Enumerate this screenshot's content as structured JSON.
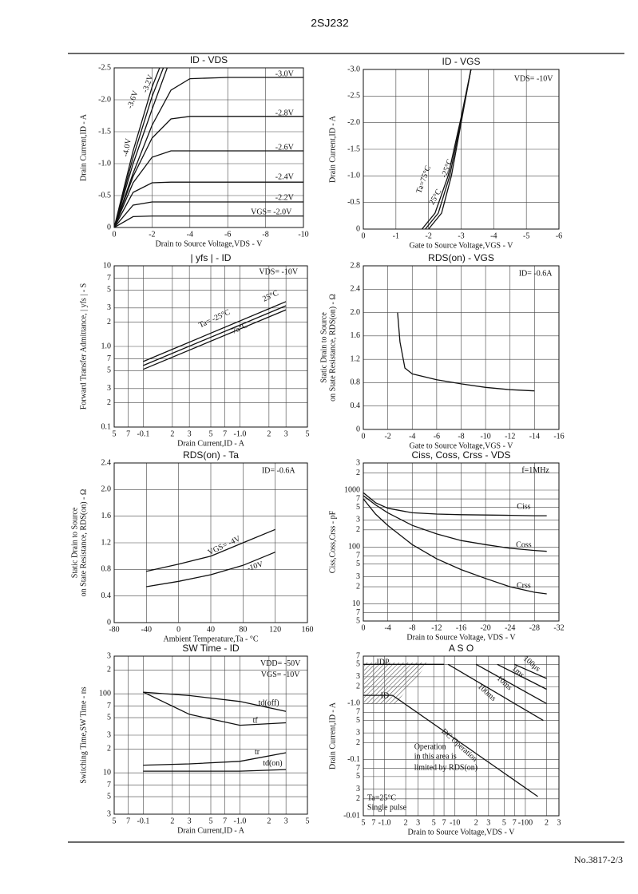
{
  "header": "2SJ232",
  "footer": "No.3817-2/3",
  "chart_data": [
    {
      "type": "line",
      "title": "ID - VDS",
      "xlabel": "Drain to Source Voltage,VDS - V",
      "ylabel": "Drain Current,ID - A",
      "xlim": [
        0,
        -10
      ],
      "ylim": [
        0,
        -2.5
      ],
      "xticks": [
        0,
        -2,
        -4,
        -6,
        -8,
        -10
      ],
      "yticks": [
        0,
        -0.5,
        {
          "value": -1,
          "label": "-1.0"
        },
        -1.5,
        {
          "value": -2,
          "label": "-2.0"
        },
        -2.5
      ],
      "grid": true,
      "series": [
        {
          "name": "-3.0V",
          "x": [
            0,
            -1,
            -2,
            -3,
            -4,
            -6,
            -8,
            -10
          ],
          "values": [
            0,
            -0.85,
            -1.6,
            -2.15,
            -2.33,
            -2.35,
            -2.35,
            -2.35
          ]
        },
        {
          "name": "-2.8V",
          "x": [
            0,
            -1,
            -2,
            -3,
            -4,
            -6,
            -8,
            -10
          ],
          "values": [
            0,
            -0.8,
            -1.4,
            -1.7,
            -1.74,
            -1.74,
            -1.74,
            -1.74
          ]
        },
        {
          "name": "-2.6V",
          "x": [
            0,
            -1,
            -2,
            -3,
            -4,
            -6,
            -8,
            -10
          ],
          "values": [
            0,
            -0.7,
            -1.1,
            -1.2,
            -1.2,
            -1.2,
            -1.2,
            -1.2
          ]
        },
        {
          "name": "-2.4V",
          "x": [
            0,
            -1,
            -2,
            -3,
            -4,
            -6,
            -8,
            -10
          ],
          "values": [
            0,
            -0.55,
            -0.7,
            -0.71,
            -0.71,
            -0.71,
            -0.71,
            -0.71
          ]
        },
        {
          "name": "-2.2V",
          "x": [
            0,
            -1,
            -2,
            -3,
            -4,
            -6,
            -8,
            -10
          ],
          "values": [
            0,
            -0.35,
            -0.4,
            -0.4,
            -0.4,
            -0.4,
            -0.4,
            -0.4
          ]
        },
        {
          "name": "VGS= -2.0V",
          "x": [
            0,
            -1,
            -2,
            -3,
            -4,
            -6,
            -8,
            -10
          ],
          "values": [
            0,
            -0.17,
            -0.18,
            -0.18,
            -0.18,
            -0.18,
            -0.18,
            -0.18
          ]
        },
        {
          "name": "-3.2V",
          "x": [
            0,
            -1,
            -2,
            -2.8
          ],
          "values": [
            0,
            -1.0,
            -1.85,
            -2.5
          ]
        },
        {
          "name": "-3.6V",
          "x": [
            0,
            -1,
            -2,
            -2.6
          ],
          "values": [
            0,
            -1.1,
            -2.05,
            -2.5
          ]
        },
        {
          "name": "-4.0V",
          "x": [
            0,
            -1,
            -2,
            -2.4
          ],
          "values": [
            0,
            -1.2,
            -2.2,
            -2.5
          ]
        }
      ]
    },
    {
      "type": "line",
      "title": "ID - VGS",
      "xlabel": "Gate to Source Voltage,VGS - V",
      "ylabel": "Drain Current,ID - A",
      "xlim": [
        0,
        -6
      ],
      "ylim": [
        0,
        -3
      ],
      "xticks": [
        0,
        -1,
        -2,
        -3,
        -4,
        -5,
        -6
      ],
      "yticks": [
        0,
        -0.5,
        {
          "value": -1,
          "label": "-1.0"
        },
        -1.5,
        {
          "value": -2,
          "label": "-2.0"
        },
        -2.5,
        {
          "value": -3,
          "label": "-3.0"
        }
      ],
      "grid": true,
      "annotations": [
        "VDS= -10V"
      ],
      "series": [
        {
          "name": "Ta=75°C",
          "x": [
            -1.8,
            -2.2,
            -2.6,
            -3.0,
            -3.3
          ],
          "values": [
            0,
            -0.3,
            -1.0,
            -2.1,
            -3.0
          ]
        },
        {
          "name": "-25°C",
          "x": [
            -2.0,
            -2.4,
            -2.7,
            -3.0,
            -3.3
          ],
          "values": [
            0,
            -0.3,
            -1.0,
            -2.0,
            -3.0
          ]
        },
        {
          "name": "25°C",
          "x": [
            -1.9,
            -2.3,
            -2.65,
            -3.0,
            -3.3
          ],
          "values": [
            0,
            -0.3,
            -1.0,
            -2.05,
            -3.0
          ]
        }
      ]
    },
    {
      "type": "line",
      "title": "| yfs | - ID",
      "xlabel": "Drain Current,ID - A",
      "ylabel": "Forward Transfer Admittance, | yfs | - S",
      "xlog": true,
      "ylog": true,
      "xlim": [
        -0.05,
        -5
      ],
      "ylim": [
        0.1,
        10
      ],
      "xticks": [
        {
          "value": -0.05,
          "label": "5"
        },
        {
          "value": -0.07,
          "label": "7"
        },
        -0.1,
        {
          "value": -0.2,
          "label": "2"
        },
        {
          "value": -0.3,
          "label": "3"
        },
        {
          "value": -0.5,
          "label": "5"
        },
        {
          "value": -0.7,
          "label": "7"
        },
        {
          "value": -1,
          "label": "-1.0"
        },
        {
          "value": -2,
          "label": "2"
        },
        {
          "value": -3,
          "label": "3"
        },
        {
          "value": -5,
          "label": "5"
        }
      ],
      "yticks": [
        10,
        7,
        5,
        3,
        2,
        {
          "value": 1,
          "label": "1.0"
        },
        {
          "value": 0.7,
          "label": "7"
        },
        {
          "value": 0.5,
          "label": "5"
        },
        {
          "value": 0.3,
          "label": "3"
        },
        {
          "value": 0.2,
          "label": "2"
        },
        0.1
      ],
      "grid": true,
      "annotations": [
        "VDS= -10V"
      ],
      "series": [
        {
          "name": "Ta= -25°C",
          "x": [
            -0.1,
            -3
          ],
          "values": [
            0.65,
            3.6
          ]
        },
        {
          "name": "25°C",
          "x": [
            -0.1,
            -3
          ],
          "values": [
            0.58,
            3.2
          ]
        },
        {
          "name": "75°C",
          "x": [
            -0.1,
            -3
          ],
          "values": [
            0.52,
            2.85
          ]
        }
      ]
    },
    {
      "type": "line",
      "title": "RDS(on) - VGS",
      "xlabel": "Gate to Source Voltage,VGS - V",
      "ylabel": [
        "Static Drain to Source",
        "on State Resistance, RDS(on) - Ω"
      ],
      "xlim": [
        0,
        -16
      ],
      "ylim": [
        0,
        2.8
      ],
      "xticks": [
        0,
        -2,
        -4,
        -6,
        -8,
        -10,
        -12,
        -14,
        -16
      ],
      "yticks": [
        0,
        0.4,
        0.8,
        1.2,
        1.6,
        {
          "value": 2,
          "label": "2.0"
        },
        2.4,
        2.8
      ],
      "grid": true,
      "annotations": [
        "ID= -0.6A"
      ],
      "series": [
        {
          "x": [
            -2.8,
            -3,
            -3.4,
            -4,
            -6,
            -8,
            -10,
            -12,
            -14
          ],
          "values": [
            2.0,
            1.5,
            1.05,
            0.95,
            0.85,
            0.78,
            0.72,
            0.68,
            0.66
          ]
        }
      ]
    },
    {
      "type": "line",
      "title": "RDS(on) - Ta",
      "xlabel": "Ambient Temperature,Ta - °C",
      "ylabel": [
        "Static Drain to Source",
        "on State Resistance, RDS(on) - Ω"
      ],
      "xlim": [
        -80,
        160
      ],
      "ylim": [
        0,
        2.4
      ],
      "xticks": [
        -80,
        -40,
        0,
        40,
        80,
        120,
        160
      ],
      "yticks": [
        0,
        0.4,
        0.8,
        1.2,
        1.6,
        {
          "value": 2,
          "label": "2.0"
        },
        2.4
      ],
      "grid": true,
      "annotations": [
        "ID= -0.6A"
      ],
      "series": [
        {
          "name": "VGS= -4V",
          "x": [
            -40,
            0,
            40,
            80,
            120
          ],
          "values": [
            0.77,
            0.88,
            1.0,
            1.2,
            1.4
          ]
        },
        {
          "name": "-10V",
          "x": [
            -40,
            0,
            40,
            80,
            120
          ],
          "values": [
            0.54,
            0.62,
            0.72,
            0.86,
            1.06
          ]
        }
      ]
    },
    {
      "type": "line",
      "title": "Ciss, Coss, Crss - VDS",
      "xlabel": "Drain to Source Voltage, VDS - V",
      "ylabel": "Ciss,Coss,Crss - pF",
      "ylog": true,
      "xlim": [
        0,
        -32
      ],
      "ylim": [
        5,
        3000
      ],
      "xticks": [
        0,
        -4,
        -8,
        -12,
        -16,
        -20,
        -24,
        -28,
        -32
      ],
      "yticks": [
        {
          "value": 3000,
          "label": "3"
        },
        {
          "value": 2000,
          "label": "2"
        },
        1000,
        {
          "value": 700,
          "label": "7"
        },
        {
          "value": 500,
          "label": "5"
        },
        {
          "value": 300,
          "label": "3"
        },
        {
          "value": 200,
          "label": "2"
        },
        100,
        {
          "value": 70,
          "label": "7"
        },
        {
          "value": 50,
          "label": "5"
        },
        {
          "value": 30,
          "label": "3"
        },
        {
          "value": 20,
          "label": "2"
        },
        10,
        7,
        5
      ],
      "grid": true,
      "annotations": [
        "f=1MHz"
      ],
      "series": [
        {
          "name": "Ciss",
          "x": [
            0,
            -2,
            -4,
            -8,
            -12,
            -16,
            -20,
            -24,
            -28,
            -30
          ],
          "values": [
            900,
            600,
            480,
            400,
            380,
            370,
            365,
            360,
            355,
            355
          ]
        },
        {
          "name": "Coss",
          "x": [
            0,
            -2,
            -4,
            -8,
            -12,
            -16,
            -20,
            -24,
            -28,
            -30
          ],
          "values": [
            800,
            550,
            400,
            240,
            170,
            130,
            110,
            95,
            87,
            84
          ]
        },
        {
          "name": "Crss",
          "x": [
            0,
            -2,
            -4,
            -8,
            -12,
            -16,
            -20,
            -24,
            -28,
            -30
          ],
          "values": [
            700,
            380,
            240,
            110,
            62,
            40,
            28,
            20,
            16,
            15
          ]
        }
      ]
    },
    {
      "type": "line",
      "title": "SW Time - ID",
      "xlabel": "Drain Current,ID - A",
      "ylabel": "Switching Time,SW Time - ns",
      "xlog": true,
      "ylog": true,
      "xlim": [
        -0.05,
        -5
      ],
      "ylim": [
        3,
        300
      ],
      "xticks": [
        {
          "value": -0.05,
          "label": "5"
        },
        {
          "value": -0.07,
          "label": "7"
        },
        -0.1,
        {
          "value": -0.2,
          "label": "2"
        },
        {
          "value": -0.3,
          "label": "3"
        },
        {
          "value": -0.5,
          "label": "5"
        },
        {
          "value": -0.7,
          "label": "7"
        },
        {
          "value": -1,
          "label": "-1.0"
        },
        {
          "value": -2,
          "label": "2"
        },
        {
          "value": -3,
          "label": "3"
        },
        {
          "value": -5,
          "label": "5"
        }
      ],
      "yticks": [
        {
          "value": 300,
          "label": "3"
        },
        {
          "value": 200,
          "label": "2"
        },
        100,
        {
          "value": 70,
          "label": "7"
        },
        {
          "value": 50,
          "label": "5"
        },
        {
          "value": 30,
          "label": "3"
        },
        {
          "value": 20,
          "label": "2"
        },
        10,
        7,
        5,
        3
      ],
      "grid": true,
      "annotations": [
        "VDD= -50V",
        "VGS= -10V"
      ],
      "series": [
        {
          "name": "td(off)",
          "x": [
            -0.1,
            -0.3,
            -1,
            -3
          ],
          "values": [
            105,
            95,
            80,
            60
          ]
        },
        {
          "name": "tf",
          "x": [
            -0.1,
            -0.3,
            -1,
            -3
          ],
          "values": [
            105,
            55,
            40,
            43
          ]
        },
        {
          "name": "tr",
          "x": [
            -0.1,
            -0.3,
            -1,
            -3
          ],
          "values": [
            12.5,
            13,
            14,
            18
          ]
        },
        {
          "name": "td(on)",
          "x": [
            -0.1,
            -0.3,
            -1,
            -3
          ],
          "values": [
            10.5,
            10.5,
            10.5,
            11
          ]
        }
      ]
    },
    {
      "type": "line",
      "title": "A S O",
      "xlabel": "Drain to Source Voltage,VDS - V",
      "ylabel": "Drain Current,ID - A",
      "xlog": true,
      "ylog": true,
      "xlim": [
        -0.5,
        -300
      ],
      "ylim": [
        -0.01,
        -7
      ],
      "xticks": [
        {
          "value": -0.5,
          "label": "5"
        },
        {
          "value": -0.7,
          "label": "7"
        },
        {
          "value": -1,
          "label": "-1.0"
        },
        {
          "value": -2,
          "label": "2"
        },
        {
          "value": -3,
          "label": "3"
        },
        {
          "value": -5,
          "label": "5"
        },
        {
          "value": -7,
          "label": "7"
        },
        -10,
        {
          "value": -20,
          "label": "2"
        },
        {
          "value": -30,
          "label": "3"
        },
        {
          "value": -50,
          "label": "5"
        },
        {
          "value": -70,
          "label": "7"
        },
        -100,
        {
          "value": -200,
          "label": "2"
        },
        {
          "value": -300,
          "label": "3"
        }
      ],
      "yticks": [
        {
          "value": -7,
          "label": "7"
        },
        {
          "value": -5,
          "label": "5"
        },
        {
          "value": -3,
          "label": "3"
        },
        {
          "value": -2,
          "label": "2"
        },
        {
          "value": -1,
          "label": "-1.0"
        },
        {
          "value": -0.7,
          "label": "7"
        },
        {
          "value": -0.5,
          "label": "5"
        },
        {
          "value": -0.3,
          "label": "3"
        },
        {
          "value": -0.2,
          "label": "2"
        },
        -0.1,
        {
          "value": -0.07,
          "label": "7"
        },
        {
          "value": -0.05,
          "label": "5"
        },
        {
          "value": -0.03,
          "label": "3"
        },
        {
          "value": -0.02,
          "label": "2"
        },
        -0.01
      ],
      "grid": true,
      "annotations": [
        "Operation",
        "in this area is",
        "limited by RDS(on)",
        "Ta=25°C",
        "Single pulse"
      ],
      "series": [
        {
          "name": "IDP",
          "x": [
            -0.5,
            -7
          ],
          "values": [
            -5,
            -5
          ]
        },
        {
          "name": "ID",
          "x": [
            -0.5,
            -1.3
          ],
          "values": [
            -1.4,
            -1.4
          ]
        },
        {
          "name": "DC Operation",
          "x": [
            -1.3,
            -150
          ],
          "values": [
            -1.4,
            -0.022
          ]
        },
        {
          "name": "100ms",
          "x": [
            -8,
            -180
          ],
          "values": [
            -5,
            -0.5
          ]
        },
        {
          "name": "10ms",
          "x": [
            -20,
            -200
          ],
          "values": [
            -5,
            -1.0
          ]
        },
        {
          "name": "1ms",
          "x": [
            -40,
            -200
          ],
          "values": [
            -5,
            -1.8
          ]
        },
        {
          "name": "100μs",
          "x": [
            -70,
            -200
          ],
          "values": [
            -5,
            -2.8
          ]
        }
      ]
    }
  ]
}
